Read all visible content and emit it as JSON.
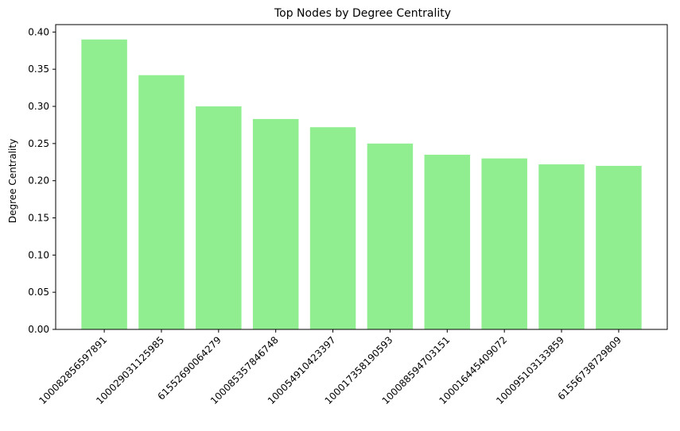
{
  "chart_data": {
    "type": "bar",
    "title": "Top Nodes by Degree Centrality",
    "xlabel": "",
    "ylabel": "Degree Centrality",
    "categories": [
      "100082856597891",
      "100029031125985",
      "61552690064279",
      "100085357846748",
      "100054910423397",
      "100017358190593",
      "100088594703151",
      "100016445409072",
      "100095103133859",
      "61556738729809"
    ],
    "values": [
      0.39,
      0.342,
      0.3,
      0.283,
      0.272,
      0.25,
      0.235,
      0.23,
      0.222,
      0.22
    ],
    "ylim": [
      0,
      0.41
    ],
    "yticks": [
      0.0,
      0.05,
      0.1,
      0.15,
      0.2,
      0.25,
      0.3,
      0.35,
      0.4
    ],
    "ytick_labels": [
      "0.00",
      "0.05",
      "0.10",
      "0.15",
      "0.20",
      "0.25",
      "0.30",
      "0.35",
      "0.40"
    ],
    "bar_color": "#90ee90",
    "grid": false
  }
}
